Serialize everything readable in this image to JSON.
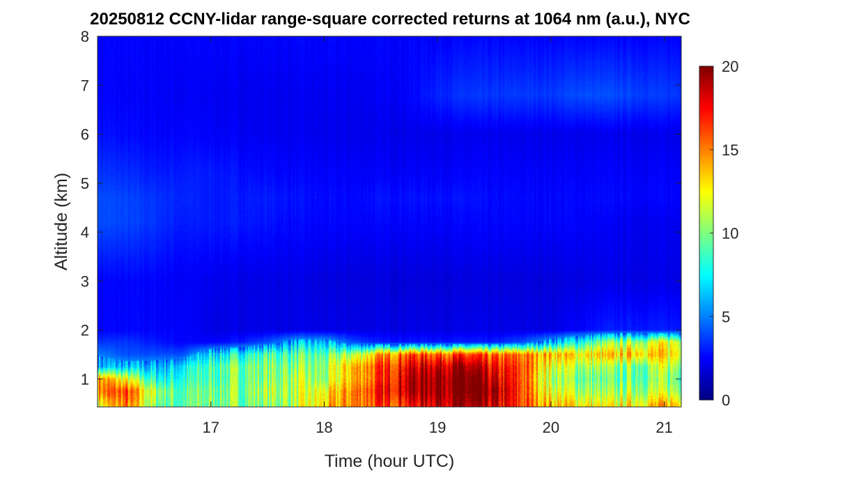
{
  "chart_data": {
    "type": "heatmap",
    "title": "20250812 CCNY-lidar range-square corrected returns at 1064 nm (a.u.), NYC",
    "xlabel": "Time (hour UTC)",
    "ylabel": "Altitude (km)",
    "xlim": [
      16.0,
      21.15
    ],
    "ylim": [
      0.43,
      8
    ],
    "xticks": [
      "17",
      "18",
      "19",
      "20",
      "21"
    ],
    "yticks": [
      "1",
      "2",
      "3",
      "4",
      "5",
      "6",
      "7",
      "8"
    ],
    "colormap": "jet",
    "clim": [
      0,
      20
    ],
    "colorbar_ticks": [
      "0",
      "5",
      "10",
      "15",
      "20"
    ],
    "colorbar_location": "right",
    "grid": false,
    "x": [
      16.0,
      16.25,
      16.5,
      16.75,
      17.0,
      17.25,
      17.5,
      17.75,
      18.0,
      18.25,
      18.5,
      18.75,
      19.0,
      19.25,
      19.5,
      19.75,
      20.0,
      20.25,
      20.5,
      20.75,
      21.0
    ],
    "y": [
      0.45,
      0.75,
      1.0,
      1.25,
      1.5,
      1.75,
      2.0,
      3.0,
      4.2,
      4.7,
      5.2,
      6.0,
      6.8,
      8.0
    ],
    "z": [
      [
        12,
        15,
        10,
        9,
        10,
        10,
        10,
        11,
        13,
        15,
        16,
        17,
        19,
        19,
        18,
        16,
        14,
        13,
        12,
        13,
        14
      ],
      [
        15,
        16,
        11,
        9,
        10,
        10,
        11,
        11,
        12,
        15,
        17,
        19,
        20,
        20,
        19,
        16,
        12,
        11,
        10,
        11,
        11
      ],
      [
        15,
        12,
        8,
        8,
        9,
        10,
        10,
        11,
        10,
        14,
        16,
        19,
        20,
        20,
        18,
        16,
        11,
        10,
        9,
        10,
        10
      ],
      [
        6,
        6,
        6,
        7,
        9,
        10,
        10,
        10,
        10,
        14,
        16,
        18,
        19,
        19,
        17,
        16,
        12,
        11,
        10,
        10,
        11
      ],
      [
        5,
        4,
        4,
        4,
        7,
        8,
        9,
        9,
        9,
        11,
        14,
        16,
        16,
        16,
        15,
        15,
        14,
        13,
        13,
        14,
        13
      ],
      [
        3.5,
        3.5,
        3,
        2.5,
        2.5,
        3,
        4,
        6,
        6,
        4,
        3,
        3,
        3,
        3,
        3,
        4,
        6,
        8,
        10,
        11,
        12
      ],
      [
        2.5,
        2.5,
        2.5,
        2.5,
        2,
        2,
        2,
        2,
        2,
        2,
        2,
        2,
        2,
        2,
        2,
        2,
        2,
        2.5,
        3,
        3,
        3
      ],
      [
        2.5,
        2.5,
        2.5,
        2.3,
        2.2,
        2,
        2,
        2,
        1.8,
        1.8,
        1.8,
        1.8,
        1.8,
        1.8,
        1.8,
        1.8,
        1.8,
        1.9,
        2,
        2,
        2
      ],
      [
        4,
        3.8,
        3.5,
        3,
        3,
        3,
        2.8,
        2.6,
        2.5,
        2.5,
        2.5,
        2.5,
        2.5,
        2.5,
        2.5,
        2.5,
        2.5,
        2.5,
        2.3,
        2.2,
        2.2
      ],
      [
        4,
        3.8,
        3.5,
        3.2,
        3,
        3,
        3,
        2.8,
        2.6,
        2.6,
        2.8,
        2.8,
        2.8,
        2.8,
        2.6,
        2.6,
        2.6,
        2.6,
        2.6,
        2.5,
        2.5
      ],
      [
        3.5,
        3.3,
        3,
        3,
        3,
        2.8,
        2.6,
        2.5,
        2.4,
        2.4,
        2.4,
        2.4,
        2.4,
        2.4,
        2.4,
        2.4,
        2.4,
        2.4,
        2.4,
        2.4,
        2.4
      ],
      [
        2.8,
        2.6,
        2.5,
        2.5,
        2.4,
        2.3,
        2.2,
        2.2,
        2.1,
        2.1,
        2.1,
        2.1,
        2.1,
        2.1,
        2.1,
        2.1,
        2.1,
        2.1,
        2.1,
        2.1,
        2.1
      ],
      [
        2.5,
        2.4,
        2.4,
        2.3,
        2.3,
        2.2,
        2.2,
        2.2,
        2.2,
        2.2,
        2.3,
        2.5,
        3.2,
        3.5,
        3.5,
        3.6,
        3.6,
        4,
        4,
        3.8,
        3.6
      ],
      [
        2.5,
        2.5,
        2.5,
        2.5,
        2.5,
        2.5,
        2.5,
        2.5,
        2.5,
        2.5,
        2.5,
        2.5,
        2.5,
        2.5,
        2.5,
        2.5,
        2.5,
        2.5,
        2.5,
        2.5,
        2.5
      ]
    ]
  }
}
